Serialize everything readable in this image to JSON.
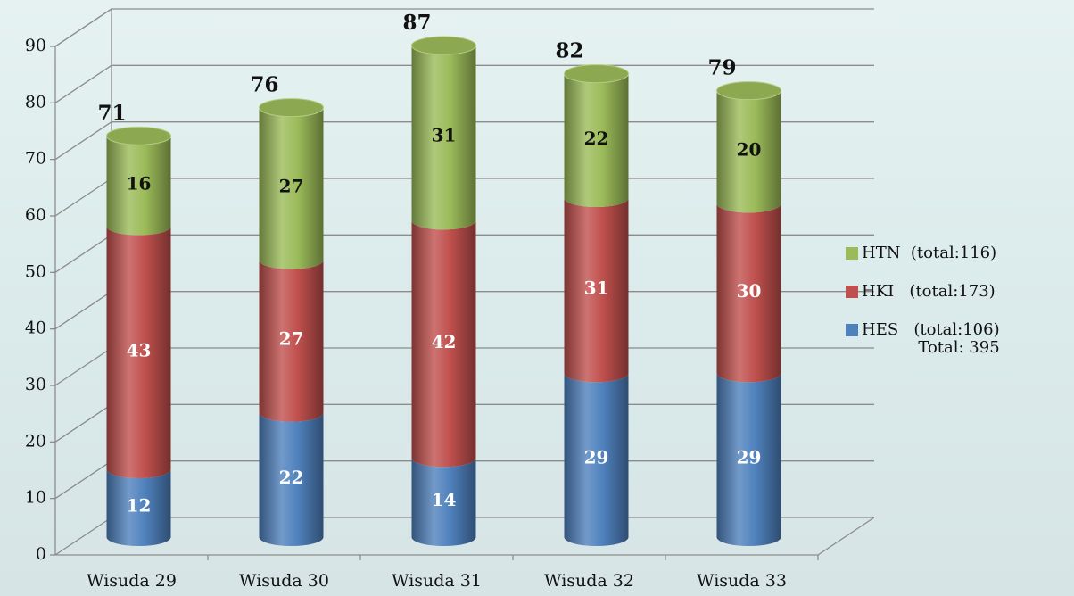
{
  "chart_data": {
    "type": "stacked_cylinder",
    "categories": [
      "Wisuda 29",
      "Wisuda 30",
      "Wisuda 31",
      "Wisuda 32",
      "Wisuda 33"
    ],
    "series": [
      {
        "name": "HES   (total:106)",
        "color": "#4f81bd",
        "values": [
          12,
          22,
          14,
          29,
          29
        ]
      },
      {
        "name": "HKI   (total:173)",
        "color": "#c0504d",
        "values": [
          43,
          27,
          42,
          31,
          30
        ]
      },
      {
        "name": "HTN  (total:116)",
        "color": "#9bbb59",
        "values": [
          16,
          27,
          31,
          22,
          20
        ]
      }
    ],
    "totals": [
      71,
      76,
      87,
      82,
      79
    ],
    "total_note": "Total: 395",
    "ylim": [
      0,
      90
    ],
    "yticks": [
      0,
      10,
      20,
      30,
      40,
      50,
      60,
      70,
      80,
      90
    ],
    "grid": true,
    "legend": "right"
  }
}
